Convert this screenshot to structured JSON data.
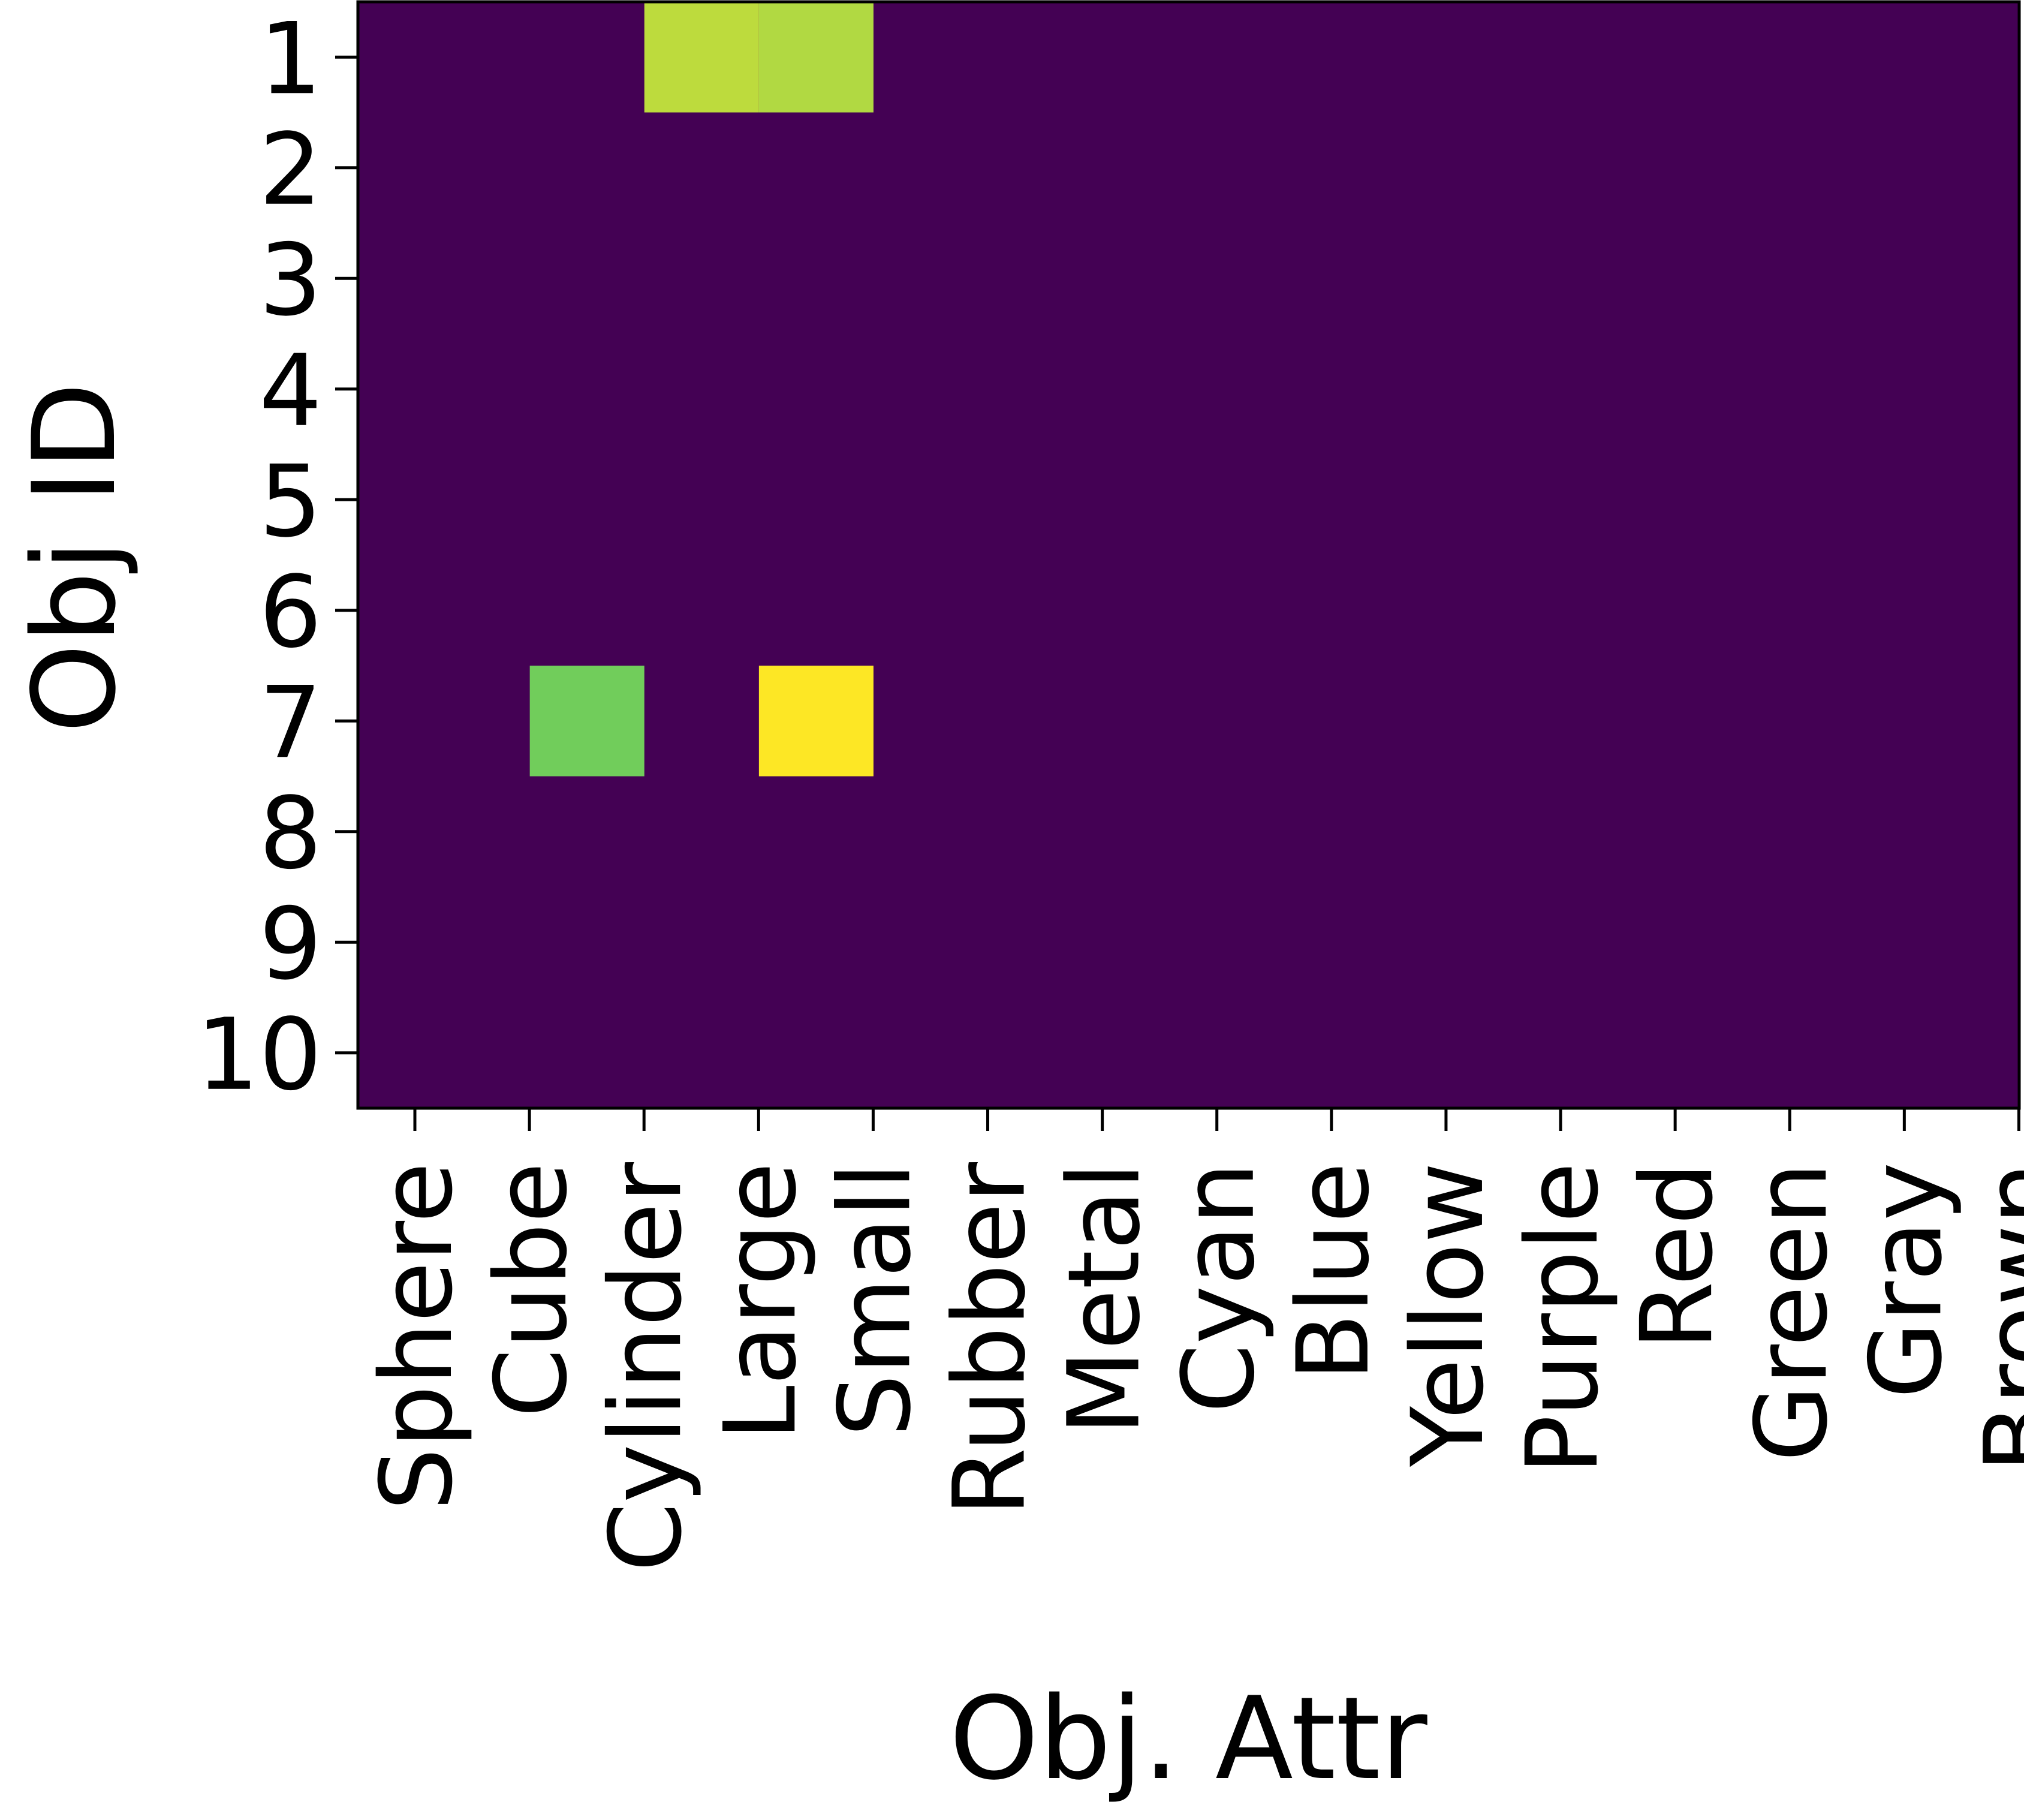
{
  "chart_data": {
    "type": "heatmap",
    "xlabel": "Obj. Attr",
    "ylabel": "Obj ID",
    "x_categories": [
      "Sphere",
      "Cube",
      "Cylinder",
      "Large",
      "Small",
      "Rubber",
      "Metal",
      "Cyan",
      "Blue",
      "Yellow",
      "Purple",
      "Red",
      "Green",
      "Gray",
      "Brown"
    ],
    "y_categories": [
      "1",
      "2",
      "3",
      "4",
      "5",
      "6",
      "7",
      "8",
      "9",
      "10"
    ],
    "colormap": "viridis",
    "value_range": [
      0,
      1
    ],
    "cells": [
      {
        "row": "1",
        "col": "Cylinder",
        "value": 0.9
      },
      {
        "row": "1",
        "col": "Large",
        "value": 0.88
      },
      {
        "row": "7",
        "col": "Cube",
        "value": 0.78
      },
      {
        "row": "7",
        "col": "Large",
        "value": 1.0
      }
    ],
    "default_value": 0,
    "grid": false
  }
}
